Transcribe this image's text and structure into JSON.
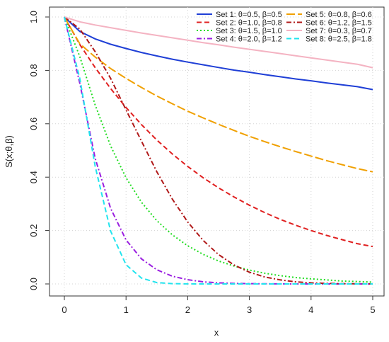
{
  "chart_data": {
    "type": "line",
    "title": "",
    "xlabel": "x",
    "ylabel": "S(x;θ,β)",
    "xlim": [
      0,
      5
    ],
    "ylim": [
      0,
      1
    ],
    "grid": true,
    "legend_position": "top-right",
    "x_ticks": [
      "0",
      "1",
      "2",
      "3",
      "4",
      "5"
    ],
    "y_ticks": [
      "0.0",
      "0.2",
      "0.4",
      "0.6",
      "0.8",
      "1.0"
    ],
    "x": [
      0,
      0.25,
      0.5,
      0.75,
      1,
      1.25,
      1.5,
      1.75,
      2,
      2.25,
      2.5,
      2.75,
      3,
      3.25,
      3.5,
      3.75,
      4,
      4.25,
      4.5,
      4.75,
      5
    ],
    "series": [
      {
        "name": "Set 1: θ=0.5, β=0.5",
        "color": "#1f3fd6",
        "dash": "solid",
        "values": [
          1.0,
          0.946,
          0.918,
          0.898,
          0.882,
          0.867,
          0.854,
          0.842,
          0.831,
          0.821,
          0.811,
          0.801,
          0.793,
          0.784,
          0.776,
          0.768,
          0.761,
          0.753,
          0.746,
          0.739,
          0.728
        ]
      },
      {
        "name": "Set 2: θ=1.0, β=0.8",
        "color": "#e02020",
        "dash": "dashed",
        "values": [
          1.0,
          0.897,
          0.81,
          0.732,
          0.661,
          0.597,
          0.539,
          0.487,
          0.44,
          0.398,
          0.36,
          0.326,
          0.295,
          0.267,
          0.242,
          0.22,
          0.2,
          0.182,
          0.166,
          0.151,
          0.14
        ]
      },
      {
        "name": "Set 3: θ=1.5, β=1.0",
        "color": "#22dd22",
        "dash": "dotted",
        "values": [
          1.0,
          0.852,
          0.67,
          0.517,
          0.398,
          0.306,
          0.237,
          0.184,
          0.143,
          0.111,
          0.086,
          0.067,
          0.052,
          0.04,
          0.031,
          0.024,
          0.019,
          0.015,
          0.011,
          0.009,
          0.007
        ]
      },
      {
        "name": "Set 4: θ=2.0, β=1.2",
        "color": "#9a1ee0",
        "dash": "dashdot",
        "values": [
          1.0,
          0.752,
          0.47,
          0.283,
          0.165,
          0.094,
          0.053,
          0.029,
          0.016,
          0.008,
          0.004,
          0.002,
          0.001,
          0.0005,
          0.0002,
          0.0001,
          0.0,
          0.0,
          0.0,
          0.0,
          0.0
        ]
      },
      {
        "name": "Set 5: θ=0.8, β=0.6",
        "color": "#f0a000",
        "dash": "longdash",
        "values": [
          1.0,
          0.9,
          0.85,
          0.807,
          0.77,
          0.736,
          0.704,
          0.675,
          0.647,
          0.622,
          0.598,
          0.575,
          0.553,
          0.533,
          0.514,
          0.496,
          0.479,
          0.462,
          0.447,
          0.432,
          0.42
        ]
      },
      {
        "name": "Set 6: θ=1.2, β=1.5",
        "color": "#b01818",
        "dash": "dashdot",
        "values": [
          1.0,
          0.955,
          0.87,
          0.77,
          0.652,
          0.535,
          0.42,
          0.318,
          0.232,
          0.163,
          0.11,
          0.071,
          0.044,
          0.026,
          0.015,
          0.008,
          0.004,
          0.002,
          0.001,
          0.0005,
          0.0002
        ]
      },
      {
        "name": "Set 7: θ=0.3, β=0.7",
        "color": "#f4b3c2",
        "dash": "solid",
        "values": [
          1.0,
          0.982,
          0.97,
          0.96,
          0.95,
          0.94,
          0.931,
          0.922,
          0.913,
          0.904,
          0.896,
          0.887,
          0.879,
          0.871,
          0.863,
          0.855,
          0.847,
          0.839,
          0.831,
          0.823,
          0.81
        ]
      },
      {
        "name": "Set 8: θ=2.5, β=1.8",
        "color": "#22e4ee",
        "dash": "dashed",
        "values": [
          1.0,
          0.77,
          0.44,
          0.198,
          0.072,
          0.022,
          0.005,
          0.001,
          0.0002,
          0.0,
          0.0,
          0.0,
          0.0,
          0.0,
          0.0,
          0.0,
          0.0,
          0.0,
          0.0,
          0.0,
          0.0
        ]
      }
    ]
  }
}
